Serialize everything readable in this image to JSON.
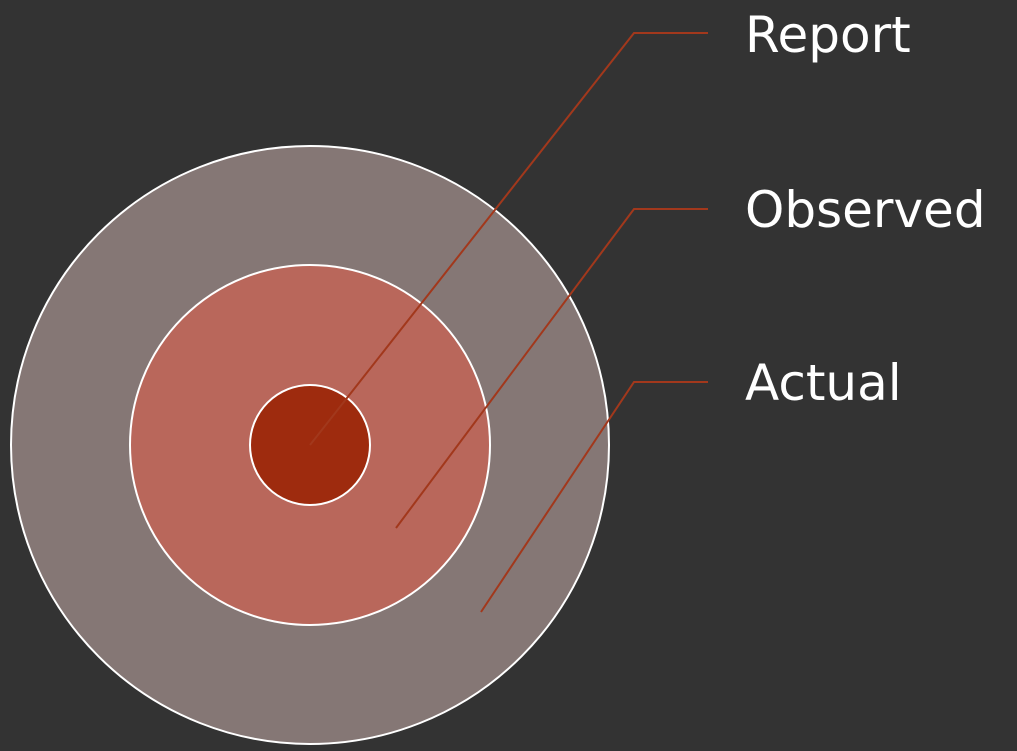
{
  "diagram": {
    "labels": {
      "report": "Report",
      "observed": "Observed",
      "actual": "Actual"
    },
    "colors": {
      "background": "#333333",
      "outer_ring": "#857775",
      "middle_ring": "#b9675b",
      "inner_core": "#9e2b0e",
      "ring_stroke": "#ffffff",
      "leader_line": "#a2381c",
      "label_text": "#ffffff"
    }
  }
}
